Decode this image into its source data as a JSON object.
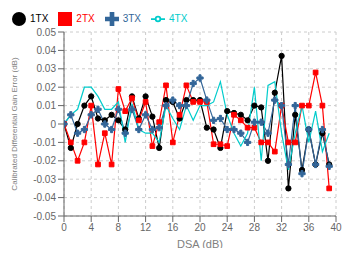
{
  "chart_data": {
    "type": "line",
    "xlabel": "DSA (dB)",
    "ylabel": "Calibrated Differential Gain Error (dB)",
    "x": [
      0,
      1,
      2,
      3,
      4,
      5,
      6,
      7,
      8,
      9,
      10,
      11,
      12,
      13,
      14,
      15,
      16,
      17,
      18,
      19,
      20,
      21,
      22,
      23,
      24,
      25,
      26,
      27,
      28,
      29,
      30,
      31,
      32,
      33,
      34,
      35,
      36,
      37,
      38,
      39
    ],
    "xlim": [
      0,
      40
    ],
    "xticks": [
      0,
      4,
      8,
      12,
      16,
      20,
      24,
      28,
      32,
      36,
      40
    ],
    "ylim": [
      -0.05,
      0.05
    ],
    "yticks": [
      -0.05,
      -0.04,
      -0.03,
      -0.02,
      -0.01,
      0,
      0.01,
      0.02,
      0.03,
      0.04,
      0.05
    ],
    "grid": true,
    "legend": "upper left",
    "series": [
      {
        "name": "1TX",
        "color": "#000000",
        "marker": "circle",
        "values": [
          0.0,
          -0.013,
          0.0,
          0.01,
          0.015,
          0.003,
          0.002,
          0.005,
          0.002,
          -0.003,
          0.015,
          0.003,
          0.015,
          0.004,
          -0.013,
          0.013,
          0.012,
          0.003,
          0.013,
          0.013,
          0.013,
          -0.002,
          -0.003,
          -0.013,
          0.007,
          0.006,
          0.005,
          0.002,
          0.01,
          0.009,
          -0.02,
          0.017,
          0.037,
          -0.035,
          0.005,
          -0.025,
          -0.003,
          -0.022,
          -0.005,
          -0.022
        ]
      },
      {
        "name": "2TX",
        "color": "#ff0000",
        "marker": "square",
        "values": [
          0.0,
          -0.01,
          -0.02,
          -0.01,
          0.01,
          -0.022,
          -0.005,
          -0.022,
          0.019,
          0.007,
          0.014,
          0.002,
          0.012,
          -0.012,
          0.001,
          0.021,
          -0.01,
          0.005,
          0.021,
          0.012,
          0.012,
          0.012,
          -0.011,
          -0.011,
          -0.012,
          0.005,
          0.002,
          -0.002,
          -0.002,
          -0.01,
          -0.01,
          -0.015,
          0.01,
          -0.01,
          -0.01,
          0.01,
          0.01,
          0.028,
          0.01,
          -0.035
        ]
      },
      {
        "name": "3TX",
        "color": "#336699",
        "marker": "plus",
        "values": [
          0.0,
          0.005,
          -0.005,
          -0.003,
          0.005,
          0.008,
          0.0,
          -0.003,
          0.008,
          -0.005,
          0.008,
          -0.003,
          0.005,
          -0.003,
          -0.002,
          0.01,
          0.013,
          0.01,
          0.01,
          0.022,
          0.025,
          0.013,
          0.002,
          0.003,
          -0.003,
          -0.003,
          -0.005,
          -0.01,
          0.001,
          0.001,
          -0.005,
          0.013,
          0.01,
          -0.022,
          0.01,
          -0.027,
          -0.003,
          -0.022,
          -0.003,
          -0.023
        ]
      },
      {
        "name": "4TX",
        "color": "#00cccc",
        "marker": "none",
        "values": [
          0.0,
          0.005,
          0.008,
          0.02,
          0.02,
          0.015,
          0.008,
          0.008,
          0.012,
          -0.01,
          0.011,
          -0.003,
          -0.005,
          -0.005,
          -0.01,
          0.01,
          0.003,
          -0.003,
          0.01,
          0.002,
          0.01,
          0.01,
          0.012,
          0.023,
          0.005,
          -0.005,
          -0.012,
          -0.005,
          0.02,
          -0.02,
          0.021,
          0.023,
          -0.005,
          -0.025,
          -0.005,
          0.01,
          -0.01,
          0.007,
          -0.015,
          -0.005
        ]
      }
    ]
  }
}
